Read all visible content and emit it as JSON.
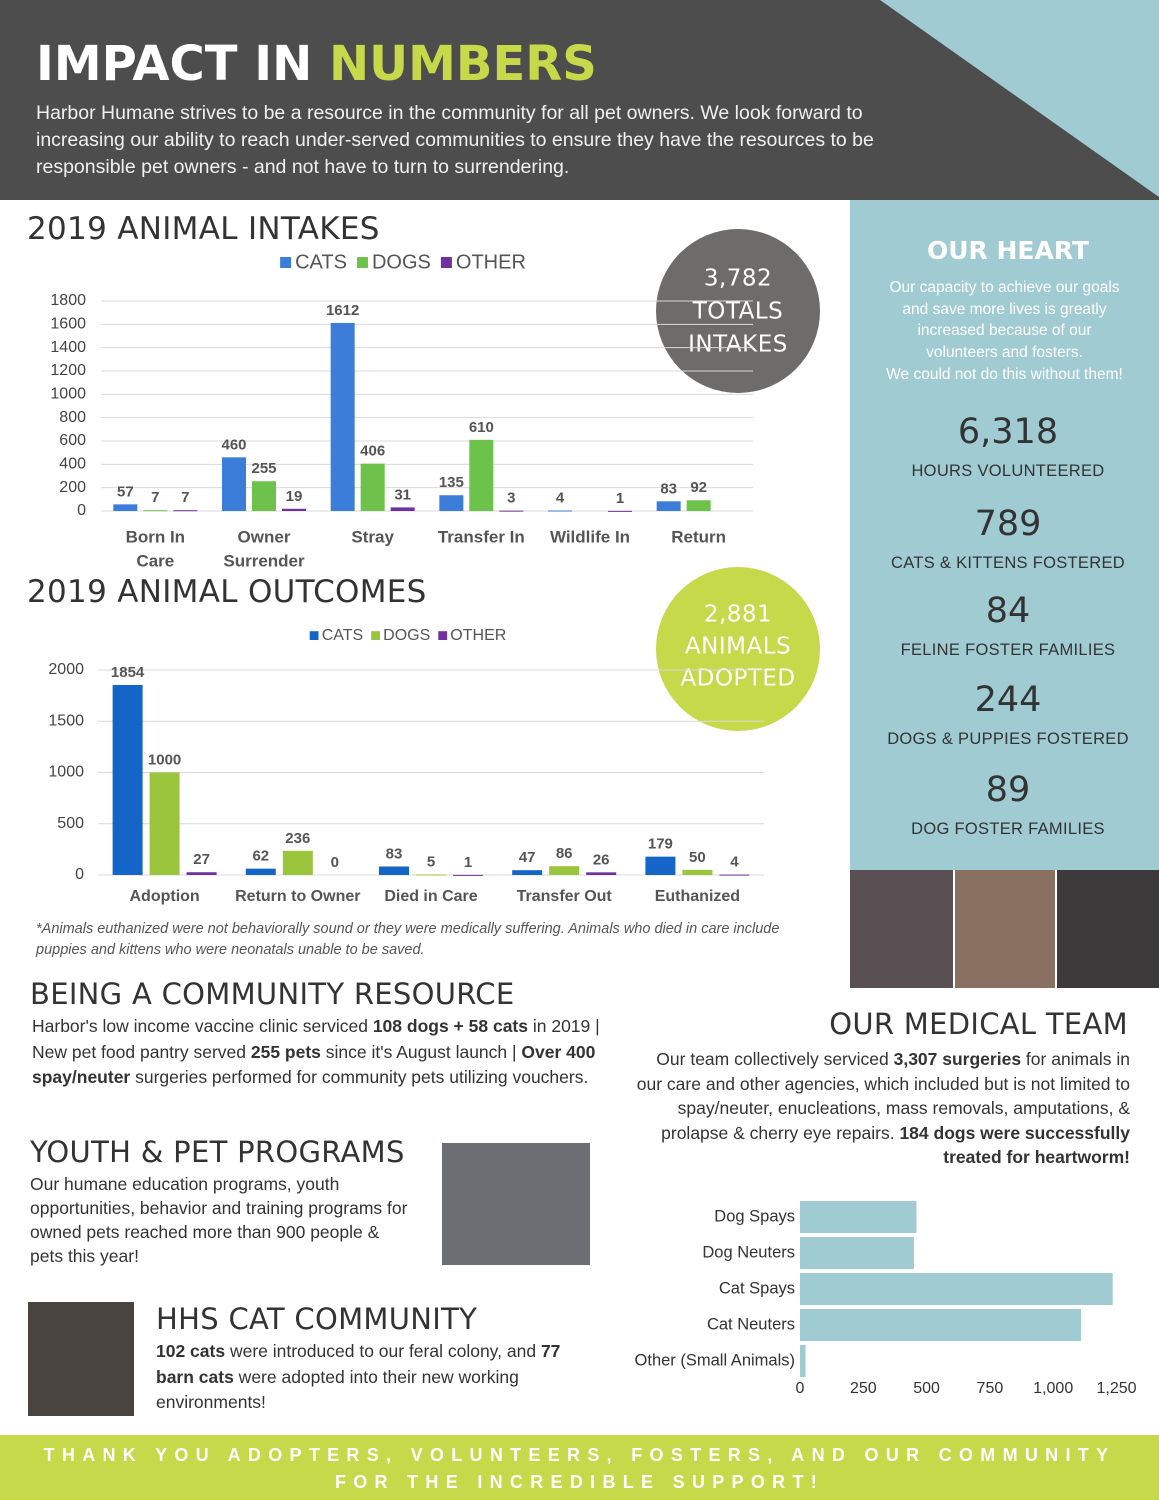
{
  "header": {
    "title": [
      "IMPACT IN",
      "NUMBERS"
    ],
    "text": "Harbor Humane strives to be a resource in the community for all pet owners. We look forward to increasing our ability to reach under-served communities to ensure they have the resources to be responsible pet owners - and not have to turn to surrendering."
  },
  "intake_badge": [
    "3,782",
    "TOTALS",
    "INTAKES"
  ],
  "outcome_badge": [
    "2,881",
    "ANIMALS",
    "ADOPTED"
  ],
  "outcomes_note": "*Animals euthanized were not behaviorally sound or they were medically suffering. Animals who died in care include puppies and kittens who were neonatals unable to be saved.",
  "heart": {
    "title": "OUR HEART",
    "lines": [
      "Our capacity to achieve our goals",
      "and save more lives is greatly",
      "increased because of our",
      "volunteers and fosters.",
      "We could not do this without them!"
    ],
    "stats": [
      {
        "number": "6,318",
        "label": "HOURS VOLUNTEERED"
      },
      {
        "number": "789",
        "label": "CATS & KITTENS FOSTERED"
      },
      {
        "number": "84",
        "label": "FELINE FOSTER FAMILIES"
      },
      {
        "number": "244",
        "label": "DOGS & PUPPIES FOSTERED"
      },
      {
        "number": "89",
        "label": "DOG FOSTER FAMILIES"
      }
    ]
  },
  "community": {
    "title": "BEING A COMMUNITY RESOURCE",
    "parts": [
      {
        "text": "Harbor's low income vaccine clinic serviced ",
        "bold": false
      },
      {
        "text": "108 dogs + 58 cats",
        "bold": true
      },
      {
        "text": " in 2019 | New pet food pantry served ",
        "bold": false
      },
      {
        "text": "255 pets",
        "bold": true
      },
      {
        "text": " since it's August launch | ",
        "bold": false
      },
      {
        "text": "Over 400 spay/neuter",
        "bold": true
      },
      {
        "text": " surgeries performed for community pets utilizing vouchers.",
        "bold": false
      }
    ]
  },
  "youth": {
    "title": "YOUTH & PET PROGRAMS",
    "text": "Our humane education programs, youth opportunities, behavior and training programs for owned pets reached more than 900 people & pets this year!"
  },
  "cats": {
    "title": "HHS CAT COMMUNITY",
    "parts": [
      {
        "text": "102 cats",
        "bold": true
      },
      {
        "text": " were introduced to our feral colony, and ",
        "bold": false
      },
      {
        "text": "77 barn cats",
        "bold": true
      },
      {
        "text": " were adopted into their new working environments!",
        "bold": false
      }
    ]
  },
  "medical": {
    "title": "OUR MEDICAL TEAM",
    "parts": [
      {
        "text": "Our team collectively serviced ",
        "bold": false
      },
      {
        "text": "3,307 surgeries",
        "bold": true
      },
      {
        "text": " for animals in our care and other agencies, which included but is not limited to spay/neuter, enucleations, mass removals, amputations, & prolapse & cherry eye repairs. ",
        "bold": false
      },
      {
        "text": "184 dogs were successfully treated for heartworm!",
        "bold": true
      }
    ]
  },
  "footer": [
    "THANK YOU ADOPTERS, VOLUNTEERS, FOSTERS, AND OUR COMMUNITY",
    "FOR THE INCREDIBLE SUPPORT!"
  ],
  "chart_data": [
    {
      "type": "bar",
      "title": "2019 ANIMAL INTAKES",
      "categories": [
        [
          "Born In",
          "Care"
        ],
        [
          "Owner",
          "Surrender"
        ],
        [
          "Stray"
        ],
        [
          "Transfer In"
        ],
        [
          "Wildlife In"
        ],
        [
          "Return"
        ]
      ],
      "series": [
        {
          "name": "CATS",
          "color": "#3b7dd8",
          "values": [
            57,
            460,
            1612,
            135,
            4,
            83
          ]
        },
        {
          "name": "DOGS",
          "color": "#6cc24a",
          "values": [
            7,
            255,
            406,
            610,
            null,
            92
          ]
        },
        {
          "name": "OTHER",
          "color": "#7030a0",
          "values": [
            7,
            19,
            31,
            3,
            1,
            null
          ]
        }
      ],
      "ylim": [
        0,
        1800
      ],
      "yticks": [
        0,
        200,
        400,
        600,
        800,
        1000,
        1200,
        1400,
        1600,
        1800
      ],
      "grid": true,
      "legend": "top"
    },
    {
      "type": "bar",
      "title": "2019 ANIMAL OUTCOMES",
      "categories": [
        "Adoption",
        "Return to Owner",
        "Died in Care",
        "Transfer Out",
        "Euthanized"
      ],
      "series": [
        {
          "name": "CATS",
          "color": "#1565c8",
          "values": [
            1854,
            62,
            83,
            47,
            179
          ]
        },
        {
          "name": "DOGS",
          "color": "#9bc53d",
          "values": [
            1000,
            236,
            5,
            86,
            50
          ]
        },
        {
          "name": "OTHER",
          "color": "#7030a0",
          "values": [
            27,
            0,
            1,
            26,
            4
          ]
        }
      ],
      "ylim": [
        0,
        2000
      ],
      "yticks": [
        0,
        500,
        1000,
        1500,
        2000
      ],
      "grid": true,
      "legend": "top"
    },
    {
      "type": "barh",
      "categories": [
        "Dog Spays",
        "Dog Neuters",
        "Cat Spays",
        "Cat Neuters",
        "Other (Small Animals)"
      ],
      "values": [
        460,
        450,
        1235,
        1110,
        22
      ],
      "color": "#a0cbd2",
      "xlim": [
        0,
        1250
      ],
      "xticks": [
        0,
        250,
        500,
        750,
        {
          "value": 1000,
          "label": "1,000"
        },
        {
          "value": 1250,
          "label": "1,250"
        }
      ],
      "grid": false
    }
  ]
}
